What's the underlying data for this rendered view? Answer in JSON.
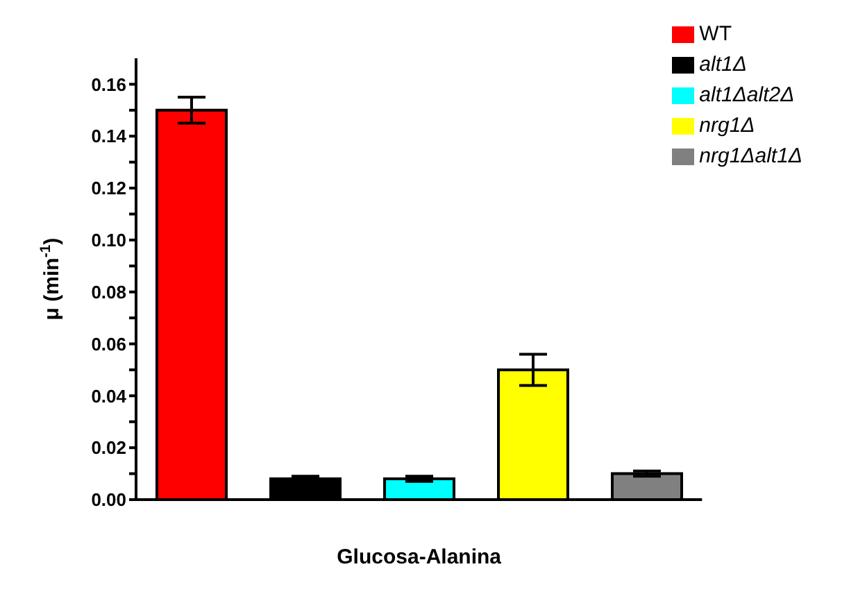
{
  "chart_data": {
    "type": "bar",
    "xlabel": "Glucosa-Alanina",
    "ylabel": "μ (min$^{-1}$)",
    "categories": [
      null
    ],
    "series": [
      {
        "name": "WT",
        "color": "#ff0000",
        "values": [
          0.15
        ],
        "errors": [
          0.005
        ]
      },
      {
        "name": "alt1Δ",
        "color": "#000000",
        "values": [
          0.008
        ],
        "errors": [
          0.001
        ]
      },
      {
        "name": "alt1Δalt2Δ",
        "color": "#00ffff",
        "values": [
          0.008
        ],
        "errors": [
          0.001
        ]
      },
      {
        "name": "nrg1Δ",
        "color": "#ffff00",
        "values": [
          0.05
        ],
        "errors": [
          0.006
        ]
      },
      {
        "name": "nrg1Δalt1Δ",
        "color": "#808080",
        "values": [
          0.01
        ],
        "errors": [
          0.001
        ]
      }
    ],
    "ylim": [
      0,
      0.17
    ],
    "yticks": [
      {
        "value": 0,
        "label": "0.00"
      },
      {
        "value": 0.01,
        "label": null
      },
      0.02,
      {
        "value": 0.03,
        "label": null
      },
      0.04,
      {
        "value": 0.05,
        "label": null
      },
      0.06,
      {
        "value": 0.07,
        "label": null
      },
      0.08,
      {
        "value": 0.09,
        "label": null
      },
      {
        "value": 0.1,
        "label": "0.10"
      },
      {
        "value": 0.11,
        "label": null
      },
      0.12,
      {
        "value": 0.13,
        "label": null
      },
      0.14,
      {
        "value": 0.15,
        "label": null
      },
      0.16
    ],
    "grid": false,
    "legend": "top right"
  }
}
